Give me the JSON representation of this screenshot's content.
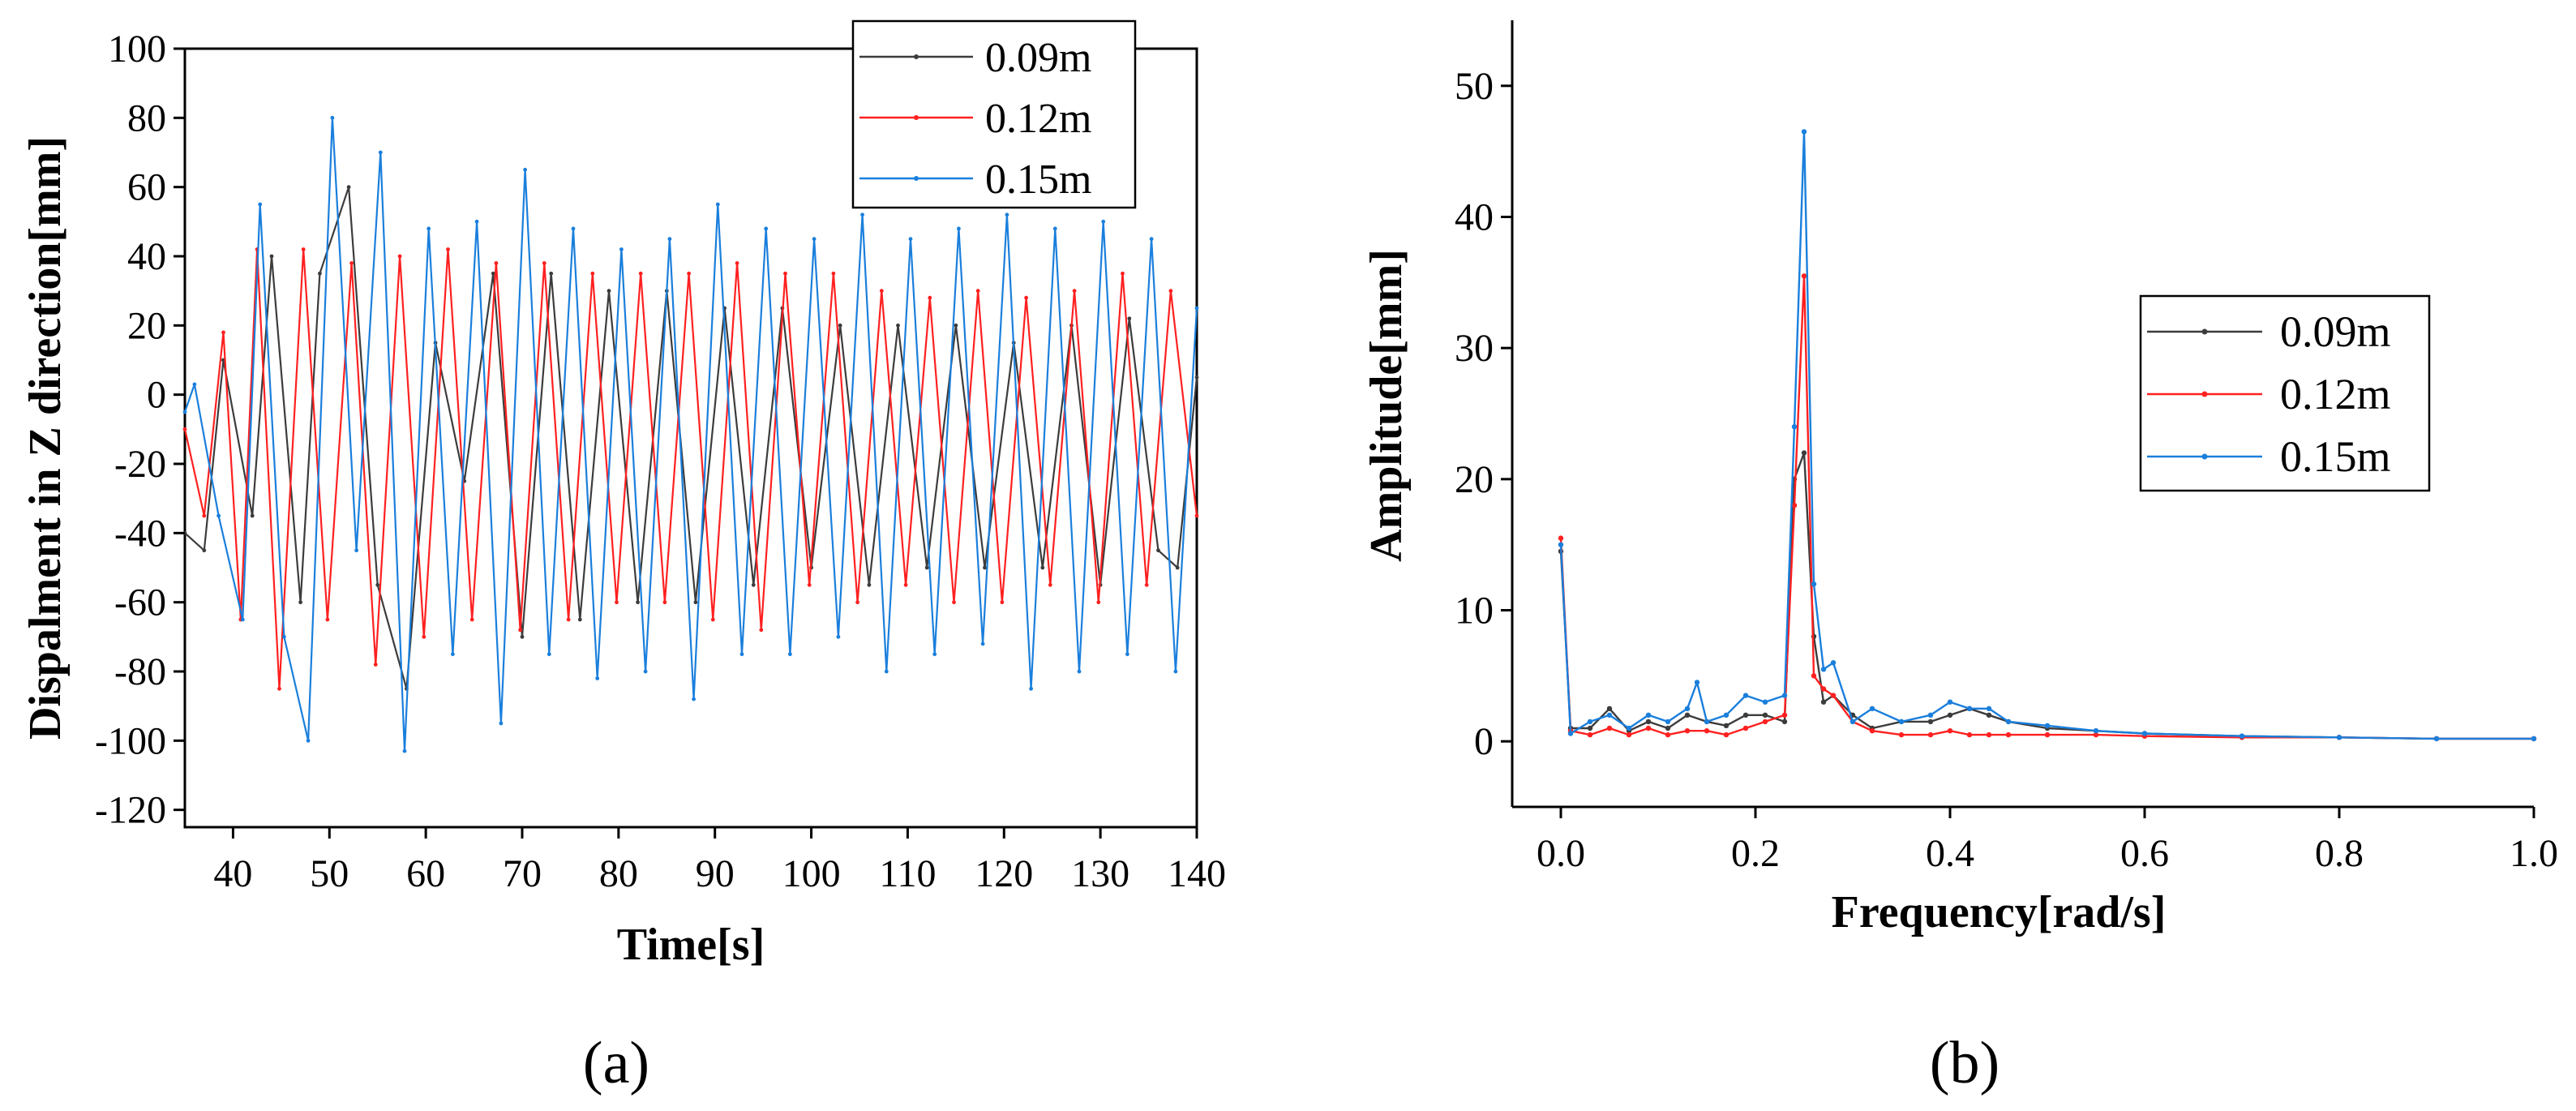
{
  "colors": {
    "s009": "#3c3c3c",
    "s012": "#ff2020",
    "s015": "#1a7fdc",
    "axis": "#000000",
    "background": "#ffffff"
  },
  "chart_data": [
    {
      "type": "line",
      "panel_label": "(a)",
      "title": "",
      "xlabel": "Time[s]",
      "ylabel": "Dispalment in Z direction[mm]",
      "xlim": [
        35,
        140
      ],
      "ylim": [
        -125,
        100
      ],
      "xticks": [
        40,
        50,
        60,
        70,
        80,
        90,
        100,
        110,
        120,
        130,
        140
      ],
      "yticks": [
        -120,
        -100,
        -80,
        -60,
        -40,
        -20,
        0,
        20,
        40,
        60,
        80,
        100
      ],
      "grid": false,
      "legend_position": "top-right",
      "series": [
        {
          "name": "0.09m",
          "color": "#3c3c3c",
          "x": [
            35,
            37,
            39,
            42,
            44,
            47,
            49,
            52,
            55,
            58,
            61,
            64,
            67,
            70,
            73,
            76,
            79,
            82,
            85,
            88,
            91,
            94,
            97,
            100,
            103,
            106,
            109,
            112,
            115,
            118,
            121,
            124,
            127,
            130,
            133,
            136,
            138,
            140
          ],
          "y": [
            -40,
            -45,
            10,
            -35,
            40,
            -60,
            35,
            60,
            -55,
            -85,
            15,
            -25,
            35,
            -70,
            35,
            -65,
            30,
            -60,
            30,
            -60,
            25,
            -55,
            25,
            -50,
            20,
            -55,
            20,
            -50,
            20,
            -50,
            15,
            -50,
            20,
            -55,
            22,
            -45,
            -50,
            5
          ]
        },
        {
          "name": "0.12m",
          "color": "#ff2020",
          "x": [
            35,
            37,
            39,
            40.8,
            42.5,
            44.8,
            47.3,
            49.8,
            52.3,
            54.8,
            57.3,
            59.8,
            62.3,
            64.8,
            67.3,
            69.8,
            72.3,
            74.8,
            77.3,
            79.8,
            82.3,
            84.8,
            87.3,
            89.8,
            92.3,
            94.8,
            97.3,
            99.8,
            102.3,
            104.8,
            107.3,
            109.8,
            112.3,
            114.8,
            117.3,
            119.8,
            122.3,
            124.8,
            127.3,
            129.8,
            132.3,
            134.8,
            137.3,
            140
          ],
          "y": [
            -10,
            -35,
            18,
            -65,
            42,
            -85,
            42,
            -65,
            38,
            -78,
            40,
            -70,
            42,
            -65,
            38,
            -68,
            38,
            -65,
            35,
            -60,
            35,
            -60,
            35,
            -65,
            38,
            -68,
            35,
            -55,
            35,
            -60,
            30,
            -55,
            28,
            -60,
            30,
            -60,
            28,
            -55,
            30,
            -60,
            35,
            -55,
            30,
            -35
          ]
        },
        {
          "name": "0.15m",
          "color": "#1a7fdc",
          "x": [
            35,
            36,
            38.5,
            41,
            42.8,
            45.3,
            47.8,
            50.3,
            52.8,
            55.3,
            57.8,
            60.3,
            62.8,
            65.3,
            67.8,
            70.3,
            72.8,
            75.3,
            77.8,
            80.3,
            82.8,
            85.3,
            87.8,
            90.3,
            92.8,
            95.3,
            97.8,
            100.3,
            102.8,
            105.3,
            107.8,
            110.3,
            112.8,
            115.3,
            117.8,
            120.3,
            122.8,
            125.3,
            127.8,
            130.3,
            132.8,
            135.3,
            137.8,
            140
          ],
          "y": [
            -5,
            3,
            -35,
            -65,
            55,
            -70,
            -100,
            80,
            -45,
            70,
            -103,
            48,
            -75,
            50,
            -95,
            65,
            -75,
            48,
            -82,
            42,
            -80,
            45,
            -88,
            55,
            -75,
            48,
            -75,
            45,
            -70,
            52,
            -80,
            45,
            -75,
            48,
            -72,
            52,
            -85,
            48,
            -80,
            50,
            -75,
            45,
            -80,
            25
          ]
        }
      ]
    },
    {
      "type": "line",
      "panel_label": "(b)",
      "title": "",
      "xlabel": "Frequency[rad/s]",
      "ylabel": "Amplitude[mm]",
      "xlim": [
        -0.05,
        1.0
      ],
      "ylim": [
        -5,
        55
      ],
      "xticks": [
        0.0,
        0.2,
        0.4,
        0.6,
        0.8,
        1.0
      ],
      "xtick_labels": [
        "0.0",
        "0.2",
        "0.4",
        "0.6",
        "0.8",
        "1.0"
      ],
      "yticks": [
        0,
        10,
        20,
        30,
        40,
        50
      ],
      "grid": false,
      "legend_position": "center-right",
      "series": [
        {
          "name": "0.09m",
          "color": "#3c3c3c",
          "x": [
            0.0,
            0.01,
            0.03,
            0.05,
            0.07,
            0.09,
            0.11,
            0.13,
            0.15,
            0.17,
            0.19,
            0.21,
            0.23,
            0.24,
            0.25,
            0.26,
            0.27,
            0.28,
            0.3,
            0.32,
            0.35,
            0.38,
            0.4,
            0.42,
            0.44,
            0.46,
            0.5,
            0.55,
            0.6,
            0.7,
            0.8,
            0.9,
            1.0
          ],
          "y": [
            14.5,
            1.0,
            1.0,
            2.5,
            0.8,
            1.5,
            1.0,
            2.0,
            1.5,
            1.2,
            2.0,
            2.0,
            1.5,
            20.0,
            22.0,
            8.0,
            3.0,
            3.5,
            2.0,
            1.0,
            1.5,
            1.5,
            2.0,
            2.5,
            2.0,
            1.5,
            1.0,
            0.8,
            0.6,
            0.4,
            0.3,
            0.2,
            0.2
          ]
        },
        {
          "name": "0.12m",
          "color": "#ff2020",
          "x": [
            0.0,
            0.01,
            0.03,
            0.05,
            0.07,
            0.09,
            0.11,
            0.13,
            0.15,
            0.17,
            0.19,
            0.21,
            0.23,
            0.24,
            0.25,
            0.26,
            0.27,
            0.28,
            0.3,
            0.32,
            0.35,
            0.38,
            0.4,
            0.42,
            0.44,
            0.46,
            0.5,
            0.55,
            0.6,
            0.7,
            0.8,
            0.9,
            1.0
          ],
          "y": [
            15.5,
            0.8,
            0.5,
            1.0,
            0.5,
            1.0,
            0.5,
            0.8,
            0.8,
            0.5,
            1.0,
            1.5,
            2.0,
            18.0,
            35.5,
            5.0,
            4.0,
            3.5,
            1.5,
            0.8,
            0.5,
            0.5,
            0.8,
            0.5,
            0.5,
            0.5,
            0.5,
            0.5,
            0.4,
            0.3,
            0.3,
            0.2,
            0.2
          ]
        },
        {
          "name": "0.15m",
          "color": "#1a7fdc",
          "x": [
            0.0,
            0.01,
            0.03,
            0.05,
            0.07,
            0.09,
            0.11,
            0.13,
            0.14,
            0.15,
            0.17,
            0.19,
            0.21,
            0.23,
            0.24,
            0.25,
            0.26,
            0.27,
            0.28,
            0.3,
            0.32,
            0.35,
            0.38,
            0.4,
            0.42,
            0.44,
            0.46,
            0.5,
            0.55,
            0.6,
            0.7,
            0.8,
            0.9,
            1.0
          ],
          "y": [
            15.0,
            0.6,
            1.5,
            2.0,
            1.0,
            2.0,
            1.5,
            2.5,
            4.5,
            1.5,
            2.0,
            3.5,
            3.0,
            3.5,
            24.0,
            46.5,
            12.0,
            5.5,
            6.0,
            1.5,
            2.5,
            1.5,
            2.0,
            3.0,
            2.5,
            2.5,
            1.5,
            1.2,
            0.8,
            0.6,
            0.4,
            0.3,
            0.2,
            0.2
          ]
        }
      ]
    }
  ]
}
